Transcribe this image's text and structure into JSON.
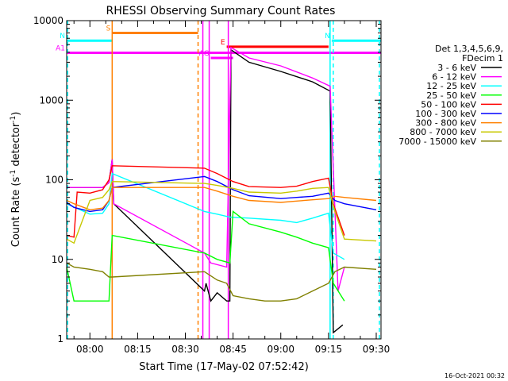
{
  "chart_data": {
    "type": "line",
    "title": "RHESSI Observing Summary Count Rates",
    "xlabel": "Start Time (17-May-02 07:52:42)",
    "ylabel": "Count Rate (s⁻¹ detector⁻¹)",
    "ylabel_main": "Count Rate (s",
    "ylabel_sup1": "-1",
    "ylabel_mid": " detector",
    "ylabel_sup2": "-1",
    "ylabel_end": ")",
    "xlim": [
      "07:52:42",
      "09:31:30"
    ],
    "ylim": [
      1,
      10000
    ],
    "y_scale": "log",
    "x_ticks": [
      "08:00",
      "08:15",
      "08:30",
      "08:45",
      "09:00",
      "09:15",
      "09:30"
    ],
    "y_ticks": [
      {
        "v": 1,
        "label": "1"
      },
      {
        "v": 10,
        "label": "10"
      },
      {
        "v": 100,
        "label": "100"
      },
      {
        "v": 1000,
        "label": "1000"
      },
      {
        "v": 10000,
        "label": "10000"
      }
    ],
    "legend_position": "right",
    "legend_header": [
      "Det 1,3,4,5,6,9,",
      "FDecim 1"
    ],
    "series": [
      {
        "name": "3 - 6 keV",
        "color": "#000000",
        "points": [
          [
            "07:52:42",
            80
          ],
          [
            "08:04",
            80
          ],
          [
            "08:06",
            92
          ],
          [
            "08:07",
            180
          ],
          [
            "08:07:30",
            50
          ],
          [
            "08:36",
            4
          ],
          [
            "08:36:30",
            5
          ],
          [
            "08:38",
            3
          ],
          [
            "08:40",
            3.8
          ],
          [
            "08:43",
            3
          ],
          [
            "08:44",
            3
          ],
          [
            "08:44:20",
            4300
          ],
          [
            "08:50",
            3000
          ],
          [
            "09:00",
            2300
          ],
          [
            "09:10",
            1700
          ],
          [
            "09:15:30",
            1300
          ],
          [
            "09:16:30",
            1.2
          ],
          [
            "09:19:30",
            1.5
          ]
        ]
      },
      {
        "name": "6 - 12 keV",
        "color": "#ff00ff",
        "points": [
          [
            "07:52:42",
            80
          ],
          [
            "08:04",
            80
          ],
          [
            "08:06",
            92
          ],
          [
            "08:07",
            180
          ],
          [
            "08:07:30",
            50
          ],
          [
            "08:36",
            12
          ],
          [
            "08:38",
            9
          ],
          [
            "08:43",
            8
          ],
          [
            "08:44:20",
            4600
          ],
          [
            "08:50",
            3400
          ],
          [
            "09:00",
            2700
          ],
          [
            "09:10",
            1900
          ],
          [
            "09:15:30",
            1500
          ],
          [
            "09:18",
            4
          ],
          [
            "09:20",
            8
          ]
        ]
      },
      {
        "name": "12 - 25 keV",
        "color": "#00ffff",
        "points": [
          [
            "07:52:42",
            50
          ],
          [
            "08:00",
            37
          ],
          [
            "08:04",
            38
          ],
          [
            "08:06",
            50
          ],
          [
            "08:07",
            120
          ],
          [
            "08:36",
            40
          ],
          [
            "08:40",
            37
          ],
          [
            "08:44",
            34
          ],
          [
            "08:50",
            33
          ],
          [
            "09:00",
            31
          ],
          [
            "09:05",
            29
          ],
          [
            "09:10",
            33
          ],
          [
            "09:15",
            38
          ],
          [
            "09:16:30",
            12
          ],
          [
            "09:20",
            10
          ]
        ]
      },
      {
        "name": "25 - 50 keV",
        "color": "#00ff00",
        "points": [
          [
            "07:52:42",
            8
          ],
          [
            "07:55",
            3
          ],
          [
            "08:00",
            3
          ],
          [
            "08:06",
            3
          ],
          [
            "08:07",
            20
          ],
          [
            "08:36",
            12
          ],
          [
            "08:40",
            10
          ],
          [
            "08:44",
            9
          ],
          [
            "08:45",
            40
          ],
          [
            "08:50",
            28
          ],
          [
            "09:00",
            22
          ],
          [
            "09:05",
            19
          ],
          [
            "09:10",
            16
          ],
          [
            "09:15",
            14
          ],
          [
            "09:16:30",
            5
          ],
          [
            "09:20",
            3
          ]
        ]
      },
      {
        "name": "50 - 100 keV",
        "color": "#ff0000",
        "points": [
          [
            "07:52:42",
            20
          ],
          [
            "07:55",
            19
          ],
          [
            "07:56",
            70
          ],
          [
            "08:00",
            68
          ],
          [
            "08:04",
            75
          ],
          [
            "08:06",
            100
          ],
          [
            "08:07",
            150
          ],
          [
            "08:36",
            140
          ],
          [
            "08:40",
            120
          ],
          [
            "08:45",
            95
          ],
          [
            "08:50",
            82
          ],
          [
            "09:00",
            80
          ],
          [
            "09:05",
            83
          ],
          [
            "09:10",
            95
          ],
          [
            "09:15",
            105
          ],
          [
            "09:16:30",
            50
          ],
          [
            "09:20",
            20
          ]
        ]
      },
      {
        "name": "100 - 300 keV",
        "color": "#0000ff",
        "points": [
          [
            "07:52:42",
            52
          ],
          [
            "07:55",
            45
          ],
          [
            "08:00",
            40
          ],
          [
            "08:04",
            42
          ],
          [
            "08:06",
            55
          ],
          [
            "08:07",
            80
          ],
          [
            "08:36",
            110
          ],
          [
            "08:40",
            95
          ],
          [
            "08:45",
            75
          ],
          [
            "08:50",
            63
          ],
          [
            "09:00",
            58
          ],
          [
            "09:05",
            60
          ],
          [
            "09:10",
            62
          ],
          [
            "09:15",
            68
          ],
          [
            "09:17",
            55
          ],
          [
            "09:20",
            50
          ],
          [
            "09:30",
            42
          ]
        ]
      },
      {
        "name": "300 - 800 keV",
        "color": "#ff8000",
        "points": [
          [
            "07:52:42",
            55
          ],
          [
            "07:55",
            50
          ],
          [
            "08:00",
            42
          ],
          [
            "08:04",
            44
          ],
          [
            "08:06",
            55
          ],
          [
            "08:07",
            80
          ],
          [
            "08:36",
            80
          ],
          [
            "08:40",
            72
          ],
          [
            "08:45",
            62
          ],
          [
            "08:50",
            55
          ],
          [
            "09:00",
            52
          ],
          [
            "09:05",
            54
          ],
          [
            "09:10",
            56
          ],
          [
            "09:15",
            58
          ],
          [
            "09:17",
            62
          ],
          [
            "09:20",
            60
          ],
          [
            "09:30",
            55
          ]
        ]
      },
      {
        "name": "800 - 7000 keV",
        "color": "#c8c800",
        "points": [
          [
            "07:52:42",
            18
          ],
          [
            "07:55",
            16
          ],
          [
            "08:00",
            55
          ],
          [
            "08:04",
            60
          ],
          [
            "08:06",
            75
          ],
          [
            "08:07",
            95
          ],
          [
            "08:36",
            90
          ],
          [
            "08:40",
            85
          ],
          [
            "08:45",
            78
          ],
          [
            "08:50",
            70
          ],
          [
            "09:00",
            68
          ],
          [
            "09:05",
            72
          ],
          [
            "09:10",
            78
          ],
          [
            "09:15",
            80
          ],
          [
            "09:17",
            40
          ],
          [
            "09:20",
            18
          ],
          [
            "09:30",
            17
          ]
        ]
      },
      {
        "name": "7000 - 15000 keV",
        "color": "#808000",
        "points": [
          [
            "07:52:42",
            9
          ],
          [
            "07:55",
            8
          ],
          [
            "08:00",
            7.5
          ],
          [
            "08:04",
            7
          ],
          [
            "08:06",
            6
          ],
          [
            "08:07",
            6
          ],
          [
            "08:36",
            7
          ],
          [
            "08:40",
            5.5
          ],
          [
            "08:43",
            5
          ],
          [
            "08:45",
            3.5
          ],
          [
            "08:50",
            3.2
          ],
          [
            "08:55",
            3
          ],
          [
            "09:00",
            3
          ],
          [
            "09:05",
            3.2
          ],
          [
            "09:10",
            4
          ],
          [
            "09:15",
            5
          ],
          [
            "09:17",
            7
          ],
          [
            "09:20",
            8
          ],
          [
            "09:30",
            7.5
          ]
        ]
      }
    ],
    "flags": [
      {
        "label": "S",
        "color": "#ff8000",
        "start": "08:07",
        "end": "08:34",
        "value": 7000
      },
      {
        "label": "N",
        "color": "#00ffff",
        "start": "07:52:42",
        "end": "08:07",
        "value": 5600
      },
      {
        "label": "N",
        "color": "#00ffff",
        "start": "09:16",
        "end": "09:31:30",
        "value": 5600
      },
      {
        "label": "E",
        "color": "#ff0000",
        "start": "08:43",
        "end": "09:15",
        "value": 4700
      },
      {
        "label": "A1",
        "color": "#ff00ff",
        "start": "07:52:42",
        "end": "09:31:30",
        "value": 3950
      },
      {
        "label": "AG",
        "color": "#ff00ff",
        "start": "08:38",
        "end": "08:45",
        "value": 3400
      }
    ],
    "vlines": [
      {
        "time": "07:53:00",
        "color": "#00ffff",
        "style": "dashed"
      },
      {
        "time": "08:07:00",
        "color": "#ff8000",
        "style": "solid"
      },
      {
        "time": "08:34:00",
        "color": "#ff8000",
        "style": "dashed"
      },
      {
        "time": "08:35:30",
        "color": "#ff00ff",
        "style": "solid"
      },
      {
        "time": "08:37:30",
        "color": "#ff00ff",
        "style": "solid"
      },
      {
        "time": "08:43:30",
        "color": "#ff00ff",
        "style": "solid"
      },
      {
        "time": "09:15:30",
        "color": "#00ffff",
        "style": "solid"
      },
      {
        "time": "09:16:30",
        "color": "#00ffff",
        "style": "dashed"
      },
      {
        "time": "09:31:00",
        "color": "#00ffff",
        "style": "dashed"
      }
    ]
  },
  "footer": {
    "timestamp": "16-Oct-2021 00:32"
  }
}
